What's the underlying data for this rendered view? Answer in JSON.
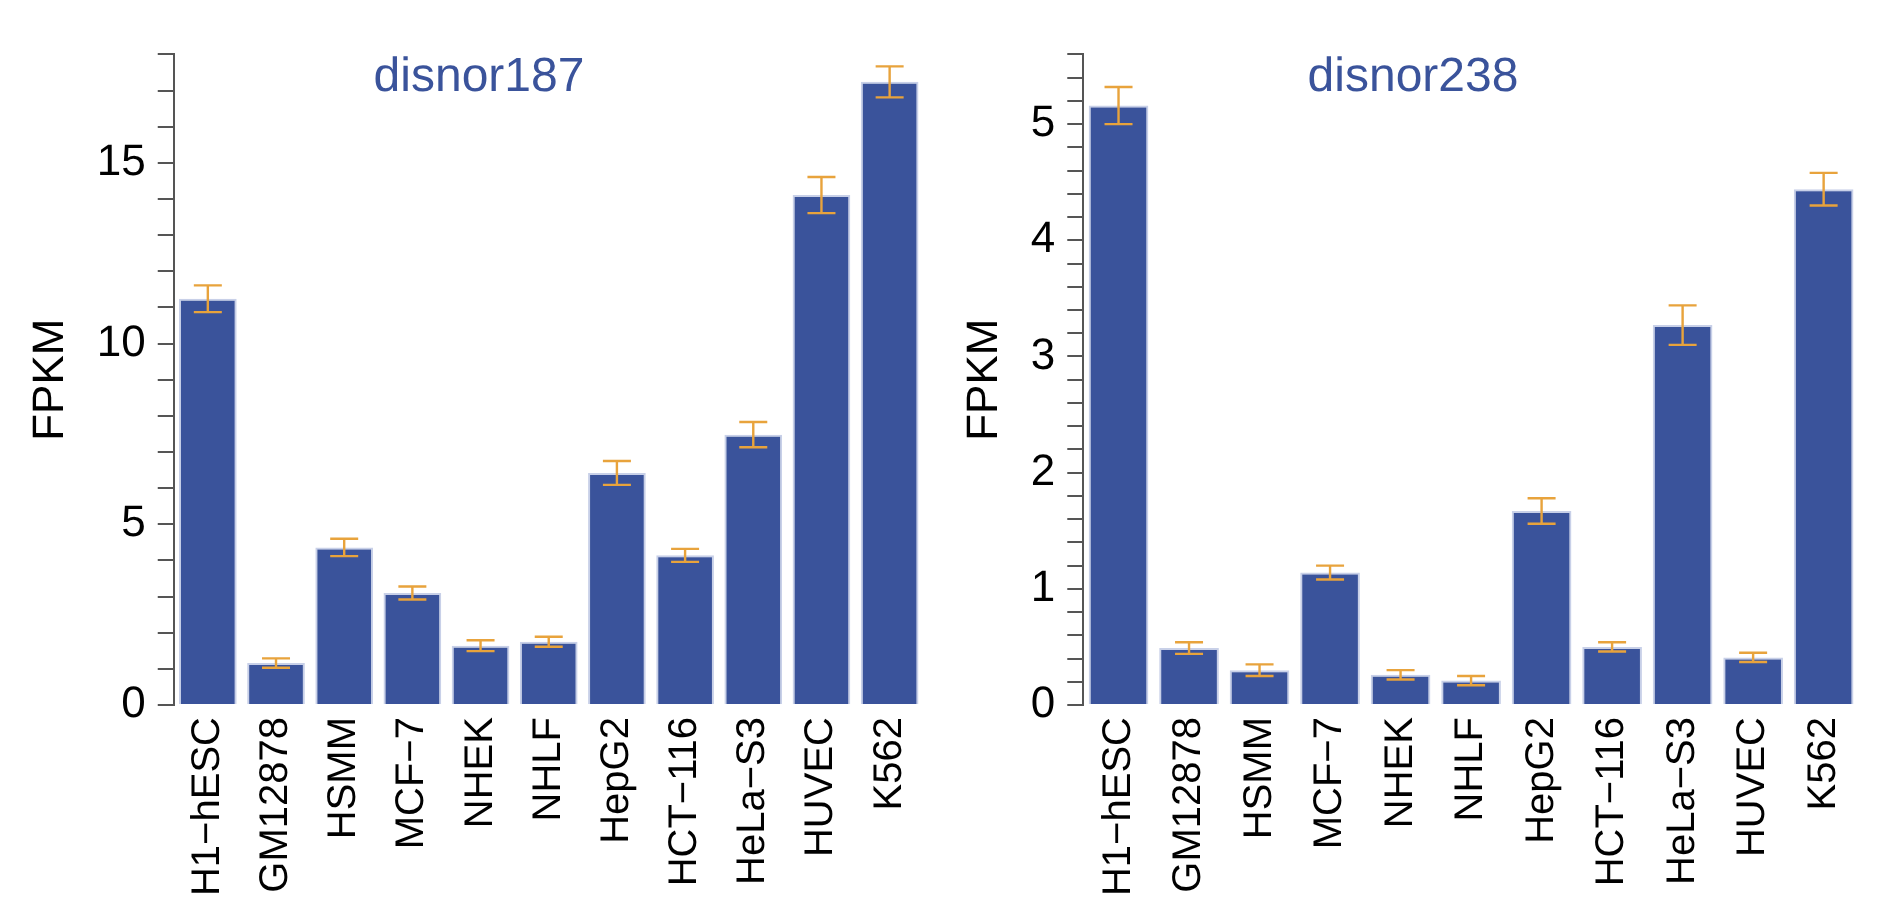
{
  "chart_data": [
    {
      "type": "bar",
      "title": "disnor187",
      "ylabel": "FPKM",
      "categories": [
        "H1−hESC",
        "GM12878",
        "HSMM",
        "MCF−7",
        "NHEK",
        "NHLF",
        "HepG2",
        "HCT−116",
        "HeLa−S3",
        "HUVEC",
        "K562"
      ],
      "values": [
        11.24,
        1.16,
        4.36,
        3.1,
        1.64,
        1.75,
        6.42,
        4.14,
        7.48,
        14.11,
        17.24
      ],
      "errors": [
        0.37,
        0.13,
        0.24,
        0.18,
        0.15,
        0.14,
        0.33,
        0.18,
        0.35,
        0.5,
        0.43
      ],
      "color": "#3a539b",
      "ylim": [
        0,
        18
      ],
      "yticks": [
        0,
        {
          "value": 1,
          "label": null
        },
        {
          "value": 2,
          "label": null
        },
        {
          "value": 3,
          "label": null
        },
        {
          "value": 4,
          "label": null
        },
        5,
        {
          "value": 6,
          "label": null
        },
        {
          "value": 7,
          "label": null
        },
        {
          "value": 8,
          "label": null
        },
        {
          "value": 9,
          "label": null
        },
        10,
        {
          "value": 11,
          "label": null
        },
        {
          "value": 12,
          "label": null
        },
        {
          "value": 13,
          "label": null
        },
        {
          "value": 14,
          "label": null
        },
        15,
        {
          "value": 16,
          "label": null
        },
        {
          "value": 17,
          "label": null
        },
        {
          "value": 18,
          "label": null
        }
      ],
      "grid": false,
      "legend": false
    },
    {
      "type": "bar",
      "title": "disnor238",
      "ylabel": "FPKM",
      "categories": [
        "H1−hESC",
        "GM12878",
        "HSMM",
        "MCF−7",
        "NHEK",
        "NHLF",
        "HepG2",
        "HCT−116",
        "HeLa−S3",
        "HUVEC",
        "K562"
      ],
      "values": [
        5.16,
        0.49,
        0.3,
        1.14,
        0.26,
        0.21,
        1.67,
        0.5,
        3.27,
        0.41,
        4.44
      ],
      "errors": [
        0.16,
        0.05,
        0.05,
        0.06,
        0.04,
        0.04,
        0.11,
        0.04,
        0.17,
        0.04,
        0.14
      ],
      "color": "#3a539b",
      "ylim": [
        0,
        5.6
      ],
      "yticks": [
        0,
        {
          "value": 0.2,
          "label": null
        },
        {
          "value": 0.4,
          "label": null
        },
        {
          "value": 0.6,
          "label": null
        },
        {
          "value": 0.8,
          "label": null
        },
        1,
        {
          "value": 1.2,
          "label": null
        },
        {
          "value": 1.4,
          "label": null
        },
        {
          "value": 1.6,
          "label": null
        },
        {
          "value": 1.8,
          "label": null
        },
        2,
        {
          "value": 2.2,
          "label": null
        },
        {
          "value": 2.4,
          "label": null
        },
        {
          "value": 2.6,
          "label": null
        },
        {
          "value": 2.8,
          "label": null
        },
        3,
        {
          "value": 3.2,
          "label": null
        },
        {
          "value": 3.4,
          "label": null
        },
        {
          "value": 3.6,
          "label": null
        },
        {
          "value": 3.8,
          "label": null
        },
        4,
        {
          "value": 4.2,
          "label": null
        },
        {
          "value": 4.4,
          "label": null
        },
        {
          "value": 4.6,
          "label": null
        },
        {
          "value": 4.8,
          "label": null
        },
        5,
        {
          "value": 5.2,
          "label": null
        },
        {
          "value": 5.4,
          "label": null
        },
        {
          "value": 5.6,
          "label": null
        }
      ],
      "grid": false,
      "legend": false
    }
  ]
}
